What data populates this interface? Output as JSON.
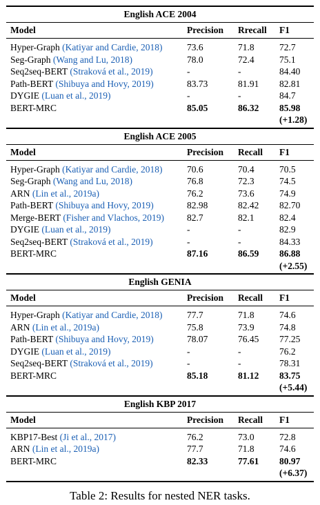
{
  "headers": {
    "model": "Model",
    "precision": "Precision",
    "recall": "Recall",
    "f1": "F1"
  },
  "sections": [
    {
      "title": "English ACE 2004",
      "recall_header": "Rrecall",
      "rows": [
        {
          "name": "Hyper-Graph",
          "cite": "(Katiyar and Cardie, 2018)",
          "p": "73.6",
          "r": "71.8",
          "f": "72.7"
        },
        {
          "name": "Seg-Graph",
          "cite": "(Wang and Lu, 2018)",
          "p": "78.0",
          "r": "72.4",
          "f": "75.1"
        },
        {
          "name": "Seq2seq-BERT",
          "cite": "(Straková et al., 2019)",
          "p": "-",
          "r": "-",
          "f": "84.40"
        },
        {
          "name": "Path-BERT",
          "cite": "(Shibuya and Hovy, 2019)",
          "p": "83.73",
          "r": "81.91",
          "f": "82.81"
        },
        {
          "name": "DYGIE",
          "cite": "(Luan et al., 2019)",
          "p": "-",
          "r": "-",
          "f": "84.7"
        }
      ],
      "ours": {
        "name": "BERT-MRC",
        "p": "85.05",
        "r": "86.32",
        "f": "85.98",
        "gain": "(+1.28)"
      }
    },
    {
      "title": "English ACE 2005",
      "recall_header": "Recall",
      "rows": [
        {
          "name": "Hyper-Graph",
          "cite": "(Katiyar and Cardie, 2018)",
          "p": "70.6",
          "r": "70.4",
          "f": "70.5"
        },
        {
          "name": "Seg-Graph",
          "cite": "(Wang and Lu, 2018)",
          "p": "76.8",
          "r": "72.3",
          "f": "74.5"
        },
        {
          "name": "ARN",
          "cite": "(Lin et al., 2019a)",
          "p": "76.2",
          "r": "73.6",
          "f": "74.9"
        },
        {
          "name": "Path-BERT",
          "cite": "(Shibuya and Hovy, 2019)",
          "p": "82.98",
          "r": "82.42",
          "f": "82.70"
        },
        {
          "name": "Merge-BERT",
          "cite": "(Fisher and Vlachos, 2019)",
          "p": "82.7",
          "r": "82.1",
          "f": "82.4"
        },
        {
          "name": "DYGIE",
          "cite": "(Luan et al., 2019)",
          "p": "-",
          "r": "-",
          "f": "82.9"
        },
        {
          "name": "Seq2seq-BERT",
          "cite": "(Straková et al., 2019)",
          "p": "-",
          "r": "-",
          "f": "84.33"
        }
      ],
      "ours": {
        "name": "BERT-MRC",
        "p": "87.16",
        "r": "86.59",
        "f": "86.88",
        "gain": "(+2.55)"
      }
    },
    {
      "title": "English GENIA",
      "recall_header": "Recall",
      "rows": [
        {
          "name": "Hyper-Graph",
          "cite": "(Katiyar and Cardie, 2018)",
          "p": "77.7",
          "r": "71.8",
          "f": "74.6"
        },
        {
          "name": "ARN",
          "cite": "(Lin et al., 2019a)",
          "p": "75.8",
          "r": "73.9",
          "f": "74.8"
        },
        {
          "name": "Path-BERT",
          "cite": "(Shibuya and Hovy, 2019)",
          "p": "78.07",
          "r": "76.45",
          "f": "77.25"
        },
        {
          "name": "DYGIE",
          "cite": "(Luan et al., 2019)",
          "p": "-",
          "r": "-",
          "f": "76.2"
        },
        {
          "name": "Seq2seq-BERT",
          "cite": "(Straková et al., 2019)",
          "p": "-",
          "r": "-",
          "f": "78.31"
        }
      ],
      "ours": {
        "name": "BERT-MRC",
        "p": "85.18",
        "r": "81.12",
        "f": "83.75",
        "gain": "(+5.44)"
      }
    },
    {
      "title": "English KBP 2017",
      "recall_header": "Recall",
      "rows": [
        {
          "name": "KBP17-Best",
          "cite": "(Ji et al., 2017)",
          "p": "76.2",
          "r": "73.0",
          "f": "72.8"
        },
        {
          "name": "ARN",
          "cite": "(Lin et al., 2019a)",
          "p": "77.7",
          "r": "71.8",
          "f": "74.6"
        }
      ],
      "ours": {
        "name": "BERT-MRC",
        "p": "82.33",
        "r": "77.61",
        "f": "80.97",
        "gain": "(+6.37)"
      }
    }
  ],
  "caption": "Table 2: Results for nested NER tasks."
}
